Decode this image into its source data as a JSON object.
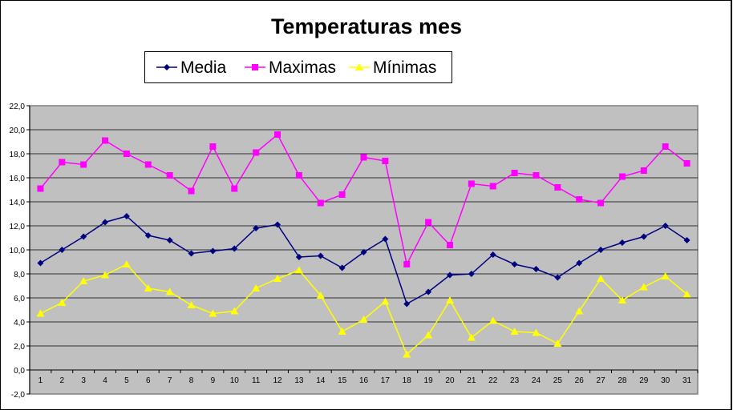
{
  "chart_data": {
    "type": "line",
    "title": "Temperaturas mes",
    "xlabel": "",
    "ylabel": "",
    "ylim": [
      -2,
      22
    ],
    "ystep": 2,
    "yticks": [
      "-2,0",
      "0,0",
      "2,0",
      "4,0",
      "6,0",
      "8,0",
      "10,0",
      "12,0",
      "14,0",
      "16,0",
      "18,0",
      "20,0",
      "22,0"
    ],
    "grid": true,
    "legend_position": "top",
    "categories": [
      "1",
      "2",
      "3",
      "4",
      "5",
      "6",
      "7",
      "8",
      "9",
      "10",
      "11",
      "12",
      "13",
      "14",
      "15",
      "16",
      "17",
      "18",
      "19",
      "20",
      "21",
      "22",
      "23",
      "24",
      "25",
      "26",
      "27",
      "28",
      "29",
      "30",
      "31"
    ],
    "series": [
      {
        "name": "Media",
        "color": "#000080",
        "marker": "diamond",
        "values": [
          8.9,
          10.0,
          11.1,
          12.3,
          12.8,
          11.2,
          10.8,
          9.7,
          9.9,
          10.1,
          11.8,
          12.1,
          9.4,
          9.5,
          8.5,
          9.8,
          10.9,
          5.5,
          6.5,
          7.9,
          8.0,
          9.6,
          8.8,
          8.4,
          7.7,
          8.9,
          10.0,
          10.6,
          11.1,
          12.0,
          10.8
        ]
      },
      {
        "name": "Maximas",
        "color": "#FF00FF",
        "marker": "square",
        "values": [
          15.1,
          17.3,
          17.1,
          19.1,
          18.0,
          17.1,
          16.2,
          14.9,
          18.6,
          15.1,
          18.1,
          19.6,
          16.2,
          13.9,
          14.6,
          17.7,
          17.4,
          8.8,
          12.3,
          10.4,
          15.5,
          15.3,
          16.4,
          16.2,
          15.2,
          14.2,
          13.9,
          16.1,
          16.6,
          18.6,
          17.2
        ]
      },
      {
        "name": "Mínimas",
        "color": "#FFFF00",
        "marker": "triangle",
        "values": [
          4.7,
          5.6,
          7.4,
          7.9,
          8.8,
          6.8,
          6.5,
          5.4,
          4.7,
          4.9,
          6.8,
          7.6,
          8.3,
          6.2,
          3.2,
          4.2,
          5.7,
          1.3,
          2.9,
          5.8,
          2.7,
          4.1,
          3.2,
          3.1,
          2.2,
          4.9,
          7.6,
          5.8,
          6.9,
          7.8,
          6.3
        ]
      }
    ],
    "plot_background": "#C0C0C0"
  }
}
